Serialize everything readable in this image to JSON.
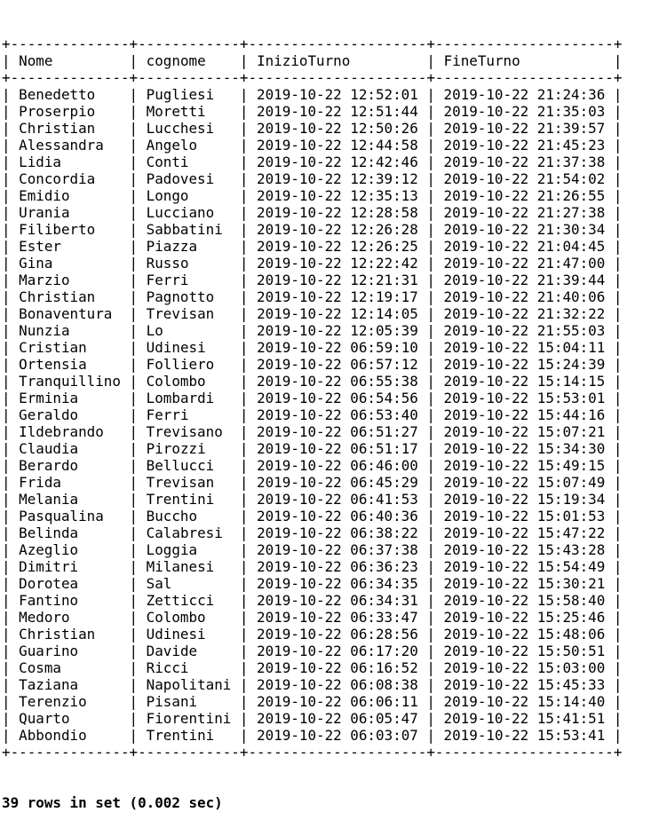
{
  "columns": [
    "Nome",
    "cognome",
    "InizioTurno",
    "FineTurno"
  ],
  "rows": [
    [
      "Benedetto",
      "Pugliesi",
      "2019-10-22 12:52:01",
      "2019-10-22 21:24:36"
    ],
    [
      "Proserpio",
      "Moretti",
      "2019-10-22 12:51:44",
      "2019-10-22 21:35:03"
    ],
    [
      "Christian",
      "Lucchesi",
      "2019-10-22 12:50:26",
      "2019-10-22 21:39:57"
    ],
    [
      "Alessandra",
      "Angelo",
      "2019-10-22 12:44:58",
      "2019-10-22 21:45:23"
    ],
    [
      "Lidia",
      "Conti",
      "2019-10-22 12:42:46",
      "2019-10-22 21:37:38"
    ],
    [
      "Concordia",
      "Padovesi",
      "2019-10-22 12:39:12",
      "2019-10-22 21:54:02"
    ],
    [
      "Emidio",
      "Longo",
      "2019-10-22 12:35:13",
      "2019-10-22 21:26:55"
    ],
    [
      "Urania",
      "Lucciano",
      "2019-10-22 12:28:58",
      "2019-10-22 21:27:38"
    ],
    [
      "Filiberto",
      "Sabbatini",
      "2019-10-22 12:26:28",
      "2019-10-22 21:30:34"
    ],
    [
      "Ester",
      "Piazza",
      "2019-10-22 12:26:25",
      "2019-10-22 21:04:45"
    ],
    [
      "Gina",
      "Russo",
      "2019-10-22 12:22:42",
      "2019-10-22 21:47:00"
    ],
    [
      "Marzio",
      "Ferri",
      "2019-10-22 12:21:31",
      "2019-10-22 21:39:44"
    ],
    [
      "Christian",
      "Pagnotto",
      "2019-10-22 12:19:17",
      "2019-10-22 21:40:06"
    ],
    [
      "Bonaventura",
      "Trevisan",
      "2019-10-22 12:14:05",
      "2019-10-22 21:32:22"
    ],
    [
      "Nunzia",
      "Lo",
      "2019-10-22 12:05:39",
      "2019-10-22 21:55:03"
    ],
    [
      "Cristian",
      "Udinesi",
      "2019-10-22 06:59:10",
      "2019-10-22 15:04:11"
    ],
    [
      "Ortensia",
      "Folliero",
      "2019-10-22 06:57:12",
      "2019-10-22 15:24:39"
    ],
    [
      "Tranquillino",
      "Colombo",
      "2019-10-22 06:55:38",
      "2019-10-22 15:14:15"
    ],
    [
      "Erminia",
      "Lombardi",
      "2019-10-22 06:54:56",
      "2019-10-22 15:53:01"
    ],
    [
      "Geraldo",
      "Ferri",
      "2019-10-22 06:53:40",
      "2019-10-22 15:44:16"
    ],
    [
      "Ildebrando",
      "Trevisano",
      "2019-10-22 06:51:27",
      "2019-10-22 15:07:21"
    ],
    [
      "Claudia",
      "Pirozzi",
      "2019-10-22 06:51:17",
      "2019-10-22 15:34:30"
    ],
    [
      "Berardo",
      "Bellucci",
      "2019-10-22 06:46:00",
      "2019-10-22 15:49:15"
    ],
    [
      "Frida",
      "Trevisan",
      "2019-10-22 06:45:29",
      "2019-10-22 15:07:49"
    ],
    [
      "Melania",
      "Trentini",
      "2019-10-22 06:41:53",
      "2019-10-22 15:19:34"
    ],
    [
      "Pasqualina",
      "Buccho",
      "2019-10-22 06:40:36",
      "2019-10-22 15:01:53"
    ],
    [
      "Belinda",
      "Calabresi",
      "2019-10-22 06:38:22",
      "2019-10-22 15:47:22"
    ],
    [
      "Azeglio",
      "Loggia",
      "2019-10-22 06:37:38",
      "2019-10-22 15:43:28"
    ],
    [
      "Dimitri",
      "Milanesi",
      "2019-10-22 06:36:23",
      "2019-10-22 15:54:49"
    ],
    [
      "Dorotea",
      "Sal",
      "2019-10-22 06:34:35",
      "2019-10-22 15:30:21"
    ],
    [
      "Fantino",
      "Zetticci",
      "2019-10-22 06:34:31",
      "2019-10-22 15:58:40"
    ],
    [
      "Medoro",
      "Colombo",
      "2019-10-22 06:33:47",
      "2019-10-22 15:25:46"
    ],
    [
      "Christian",
      "Udinesi",
      "2019-10-22 06:28:56",
      "2019-10-22 15:48:06"
    ],
    [
      "Guarino",
      "Davide",
      "2019-10-22 06:17:20",
      "2019-10-22 15:50:51"
    ],
    [
      "Cosma",
      "Ricci",
      "2019-10-22 06:16:52",
      "2019-10-22 15:03:00"
    ],
    [
      "Taziana",
      "Napolitani",
      "2019-10-22 06:08:38",
      "2019-10-22 15:45:33"
    ],
    [
      "Terenzio",
      "Pisani",
      "2019-10-22 06:06:11",
      "2019-10-22 15:14:40"
    ],
    [
      "Quarto",
      "Fiorentini",
      "2019-10-22 06:05:47",
      "2019-10-22 15:41:51"
    ],
    [
      "Abbondio",
      "Trentini",
      "2019-10-22 06:03:07",
      "2019-10-22 15:53:41"
    ]
  ],
  "summary": "39 rows in set (0.002 sec)"
}
